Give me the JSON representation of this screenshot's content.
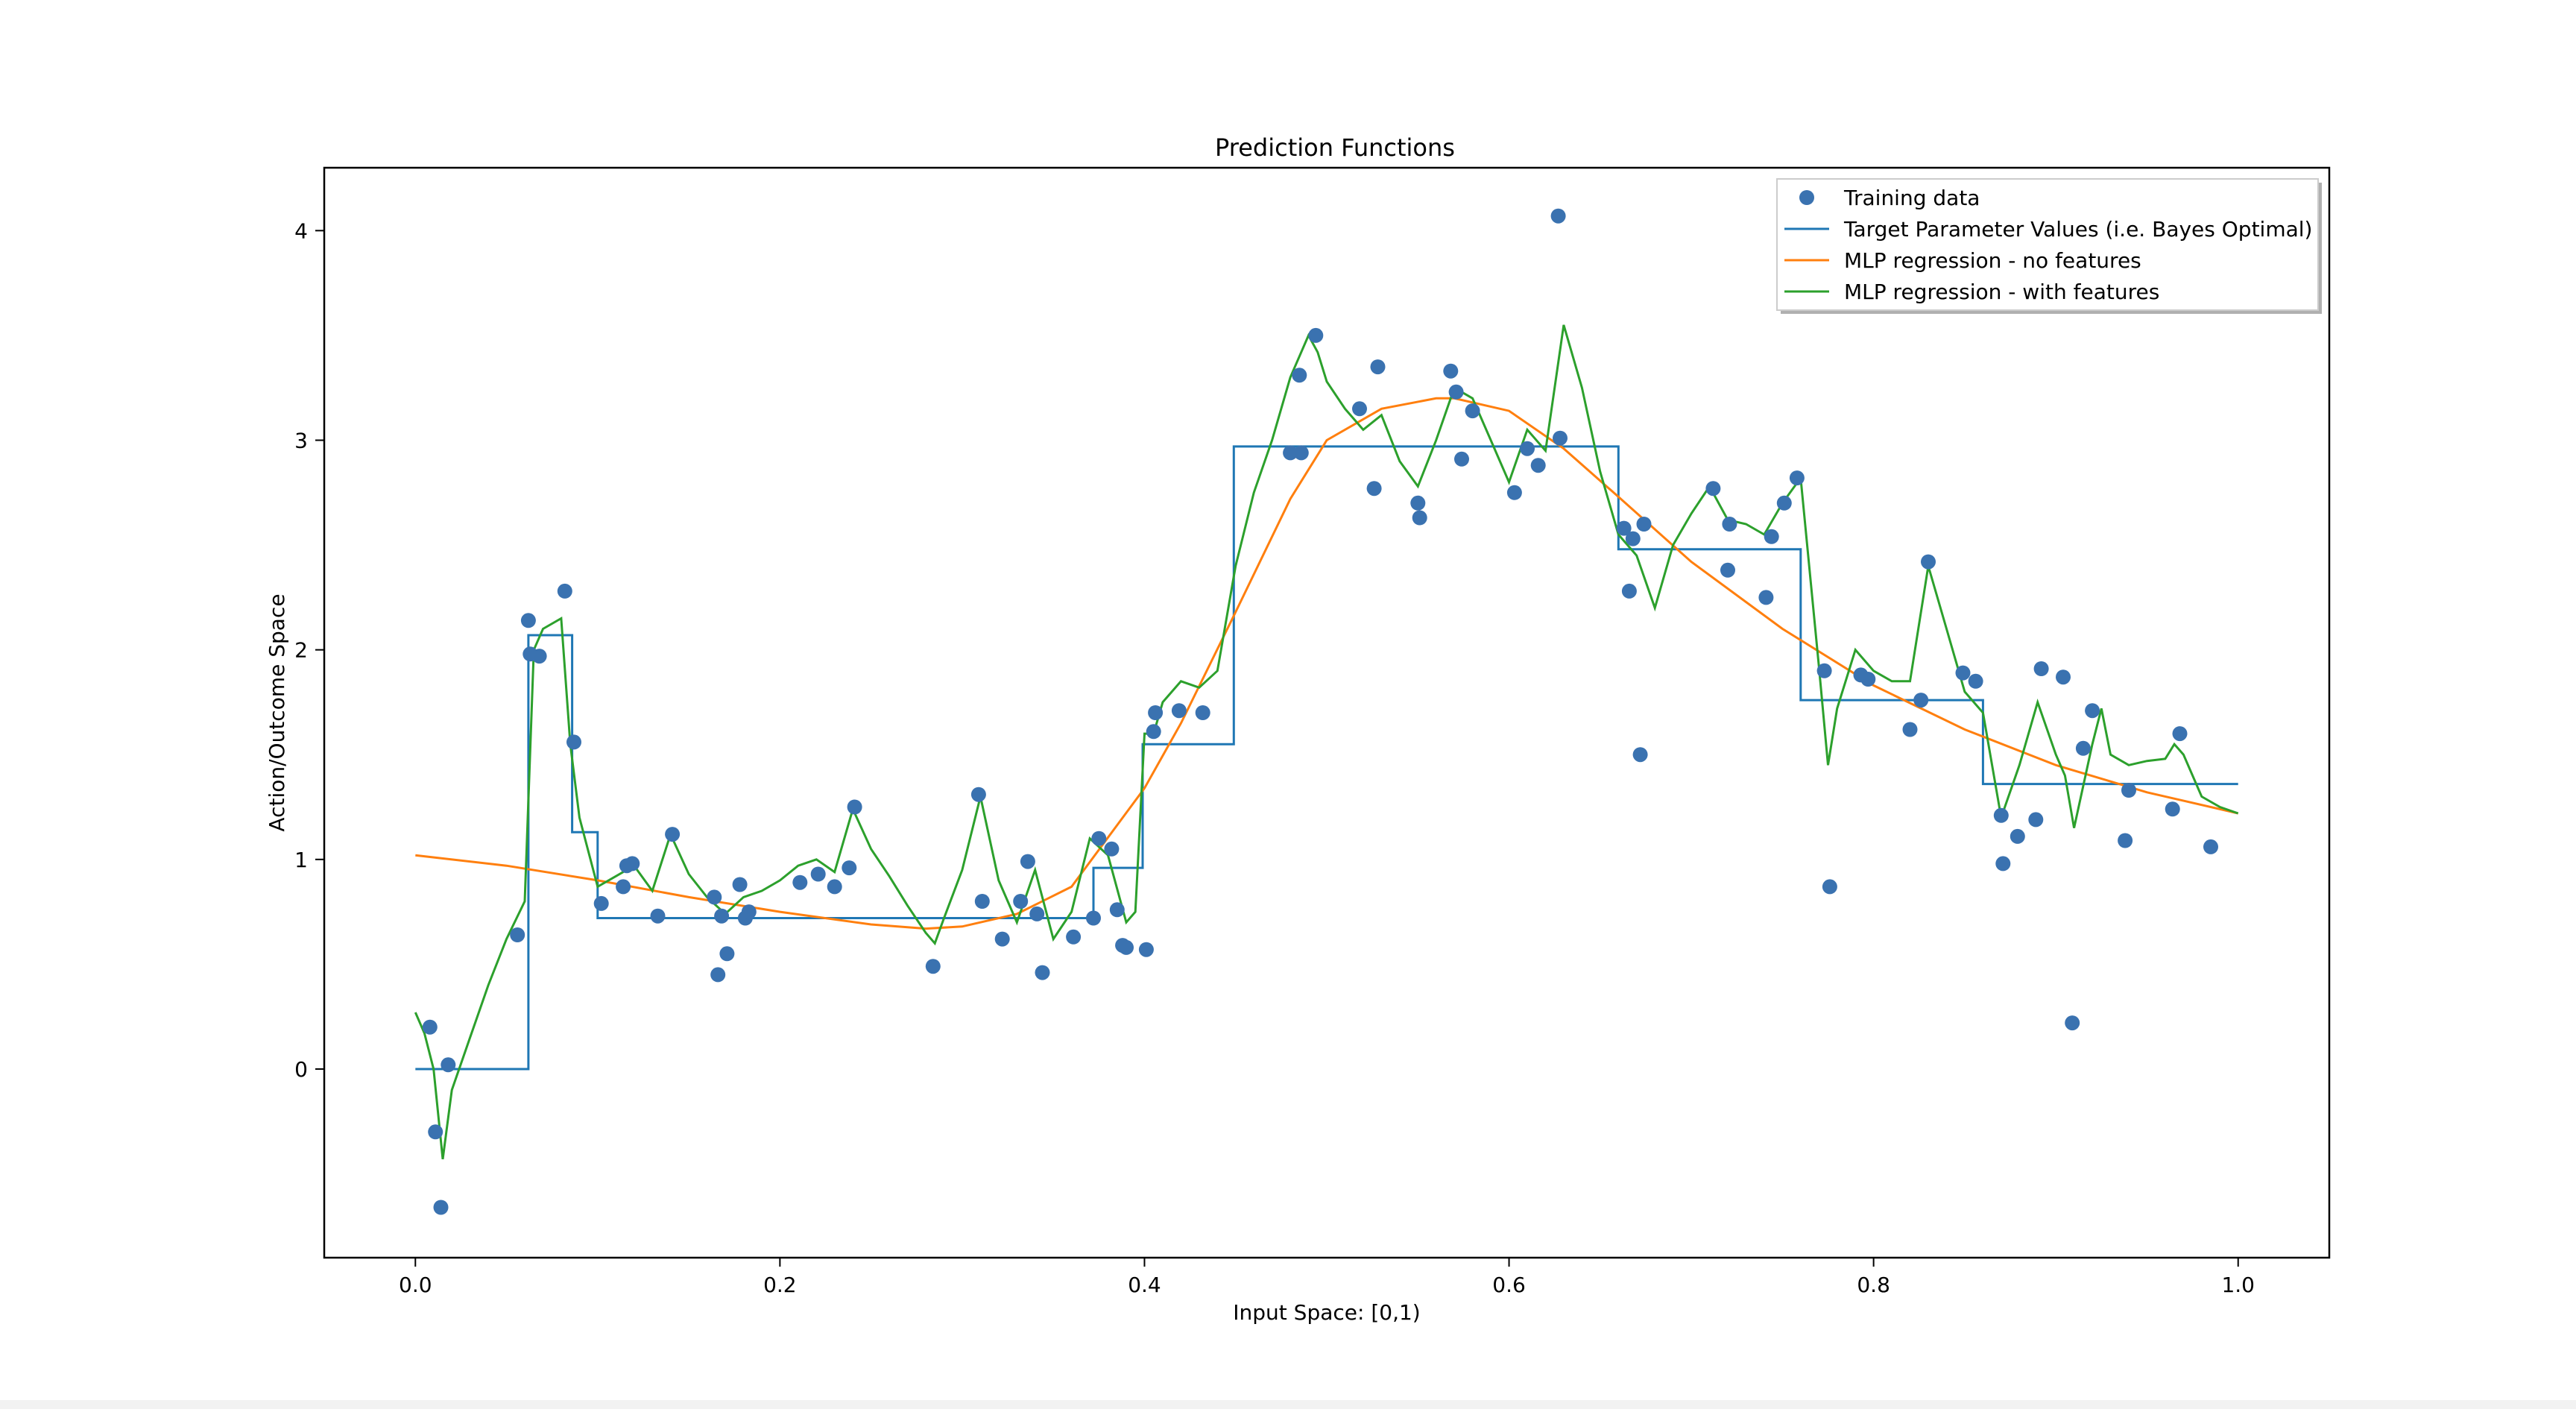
{
  "chart_data": {
    "type": "line",
    "title": "Prediction Functions",
    "xlabel": "Input Space: [0,1)",
    "ylabel": "Action/Outcome Space",
    "xlim": [
      -0.05,
      1.05
    ],
    "ylim": [
      -0.9,
      4.3
    ],
    "xticks": [
      0.0,
      0.2,
      0.4,
      0.6,
      0.8,
      1.0
    ],
    "xtick_labels": [
      "0.0",
      "0.2",
      "0.4",
      "0.6",
      "0.8",
      "1.0"
    ],
    "yticks": [
      0,
      1,
      2,
      3,
      4
    ],
    "ytick_labels": [
      "0",
      "1",
      "2",
      "3",
      "4"
    ],
    "grid": false,
    "legend_position": "top-right",
    "colors": {
      "training": "#3a72b0",
      "target": "#1f77b4",
      "no_features": "#ff7f0e",
      "with_features": "#2ca02c"
    },
    "training_data": {
      "name": "Training data",
      "x": [
        0.008,
        0.011,
        0.014,
        0.018,
        0.056,
        0.062,
        0.063,
        0.068,
        0.082,
        0.087,
        0.102,
        0.114,
        0.116,
        0.119,
        0.133,
        0.141,
        0.164,
        0.166,
        0.168,
        0.171,
        0.178,
        0.181,
        0.183,
        0.211,
        0.221,
        0.23,
        0.238,
        0.241,
        0.284,
        0.309,
        0.311,
        0.322,
        0.332,
        0.336,
        0.341,
        0.344,
        0.361,
        0.372,
        0.375,
        0.382,
        0.385,
        0.388,
        0.39,
        0.401,
        0.405,
        0.406,
        0.419,
        0.432,
        0.48,
        0.485,
        0.486,
        0.494,
        0.518,
        0.526,
        0.528,
        0.55,
        0.551,
        0.568,
        0.571,
        0.574,
        0.58,
        0.603,
        0.61,
        0.616,
        0.627,
        0.628,
        0.663,
        0.666,
        0.668,
        0.672,
        0.674,
        0.712,
        0.72,
        0.721,
        0.741,
        0.744,
        0.751,
        0.758,
        0.773,
        0.776,
        0.793,
        0.797,
        0.82,
        0.826,
        0.83,
        0.849,
        0.856,
        0.87,
        0.871,
        0.879,
        0.889,
        0.892,
        0.904,
        0.909,
        0.915,
        0.92,
        0.938,
        0.94,
        0.964,
        0.968,
        0.985
      ],
      "y": [
        0.2,
        -0.3,
        -0.66,
        0.02,
        0.64,
        2.14,
        1.98,
        1.97,
        2.28,
        1.56,
        0.79,
        0.87,
        0.97,
        0.98,
        0.73,
        1.12,
        0.82,
        0.45,
        0.73,
        0.55,
        0.88,
        0.72,
        0.75,
        0.89,
        0.93,
        0.87,
        0.96,
        1.25,
        0.49,
        1.31,
        0.8,
        0.62,
        0.8,
        0.99,
        0.74,
        0.46,
        0.63,
        0.72,
        1.1,
        1.05,
        0.76,
        0.59,
        0.58,
        0.57,
        1.61,
        1.7,
        1.71,
        1.7,
        2.94,
        3.31,
        2.94,
        3.5,
        3.15,
        2.77,
        3.35,
        2.7,
        2.63,
        3.33,
        3.23,
        2.91,
        3.14,
        2.75,
        2.96,
        2.88,
        4.07,
        3.01,
        2.58,
        2.28,
        2.53,
        1.5,
        2.6,
        2.77,
        2.38,
        2.6,
        2.25,
        2.54,
        2.7,
        2.82,
        1.9,
        0.87,
        1.88,
        1.86,
        1.62,
        1.76,
        2.42,
        1.89,
        1.85,
        1.21,
        0.98,
        1.11,
        1.19,
        1.91,
        1.87,
        0.22,
        1.53,
        1.71,
        1.09,
        1.33,
        1.24,
        1.6,
        1.06
      ]
    },
    "series": [
      {
        "name": "Target Parameter Values (i.e. Bayes Optimal)",
        "step": true,
        "x": [
          0,
          0.062,
          0.062,
          0.086,
          0.086,
          0.1,
          0.1,
          0.372,
          0.372,
          0.399,
          0.399,
          0.449,
          0.449,
          0.66,
          0.66,
          0.76,
          0.76,
          0.86,
          0.86,
          1.0
        ],
        "y": [
          0,
          0,
          2.07,
          2.07,
          1.13,
          1.13,
          0.72,
          0.72,
          0.96,
          0.96,
          1.55,
          1.55,
          2.97,
          2.97,
          2.48,
          2.48,
          1.76,
          1.76,
          1.36,
          1.36
        ]
      },
      {
        "name": "MLP regression - no features",
        "x": [
          0,
          0.05,
          0.1,
          0.15,
          0.2,
          0.25,
          0.28,
          0.3,
          0.33,
          0.36,
          0.4,
          0.42,
          0.45,
          0.48,
          0.5,
          0.53,
          0.56,
          0.57,
          0.6,
          0.63,
          0.66,
          0.7,
          0.75,
          0.8,
          0.85,
          0.9,
          0.95,
          1.0
        ],
        "y": [
          1.02,
          0.97,
          0.9,
          0.82,
          0.75,
          0.69,
          0.67,
          0.68,
          0.74,
          0.87,
          1.34,
          1.65,
          2.18,
          2.72,
          3.0,
          3.15,
          3.2,
          3.2,
          3.14,
          2.96,
          2.73,
          2.42,
          2.1,
          1.83,
          1.62,
          1.45,
          1.32,
          1.22
        ]
      },
      {
        "name": "MLP regression - with features",
        "x": [
          0,
          0.005,
          0.01,
          0.015,
          0.02,
          0.03,
          0.04,
          0.05,
          0.06,
          0.065,
          0.07,
          0.08,
          0.085,
          0.09,
          0.1,
          0.11,
          0.12,
          0.13,
          0.14,
          0.15,
          0.16,
          0.17,
          0.18,
          0.19,
          0.2,
          0.21,
          0.22,
          0.23,
          0.24,
          0.25,
          0.26,
          0.27,
          0.28,
          0.285,
          0.29,
          0.3,
          0.31,
          0.32,
          0.33,
          0.34,
          0.35,
          0.36,
          0.37,
          0.38,
          0.39,
          0.395,
          0.4,
          0.405,
          0.41,
          0.42,
          0.43,
          0.44,
          0.45,
          0.46,
          0.47,
          0.48,
          0.49,
          0.495,
          0.5,
          0.51,
          0.52,
          0.53,
          0.54,
          0.55,
          0.56,
          0.57,
          0.58,
          0.59,
          0.6,
          0.61,
          0.62,
          0.63,
          0.64,
          0.65,
          0.66,
          0.67,
          0.68,
          0.69,
          0.7,
          0.71,
          0.72,
          0.73,
          0.74,
          0.75,
          0.76,
          0.77,
          0.775,
          0.78,
          0.79,
          0.8,
          0.81,
          0.82,
          0.83,
          0.84,
          0.85,
          0.86,
          0.87,
          0.88,
          0.89,
          0.9,
          0.905,
          0.91,
          0.92,
          0.925,
          0.93,
          0.94,
          0.95,
          0.96,
          0.965,
          0.97,
          0.98,
          0.99,
          1.0
        ],
        "y": [
          0.27,
          0.17,
          0.0,
          -0.43,
          -0.1,
          0.15,
          0.4,
          0.62,
          0.8,
          2.0,
          2.1,
          2.15,
          1.55,
          1.2,
          0.87,
          0.92,
          0.97,
          0.85,
          1.12,
          0.93,
          0.82,
          0.74,
          0.82,
          0.85,
          0.9,
          0.97,
          1.0,
          0.94,
          1.24,
          1.05,
          0.92,
          0.78,
          0.65,
          0.6,
          0.72,
          0.95,
          1.3,
          0.9,
          0.7,
          0.95,
          0.62,
          0.75,
          1.1,
          1.02,
          0.7,
          0.75,
          1.6,
          1.6,
          1.75,
          1.85,
          1.82,
          1.9,
          2.4,
          2.75,
          3.0,
          3.3,
          3.5,
          3.42,
          3.28,
          3.15,
          3.05,
          3.12,
          2.9,
          2.78,
          3.0,
          3.25,
          3.2,
          3.0,
          2.8,
          3.05,
          2.95,
          3.55,
          3.25,
          2.85,
          2.55,
          2.45,
          2.2,
          2.5,
          2.65,
          2.78,
          2.62,
          2.6,
          2.55,
          2.7,
          2.82,
          1.92,
          1.45,
          1.72,
          2.0,
          1.9,
          1.85,
          1.85,
          2.4,
          2.1,
          1.8,
          1.7,
          1.2,
          1.45,
          1.75,
          1.5,
          1.4,
          1.15,
          1.55,
          1.72,
          1.5,
          1.45,
          1.47,
          1.48,
          1.55,
          1.5,
          1.3,
          1.25,
          1.22
        ]
      }
    ]
  }
}
